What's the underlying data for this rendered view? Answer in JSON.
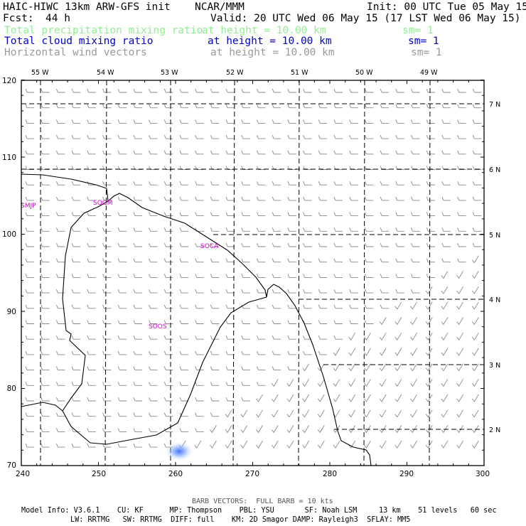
{
  "header": {
    "model_title": "HAIC-HIWC 13km ARW-GFS init",
    "center": "NCAR/MMM",
    "init": "Init: 00 UTC Tue 05 May 15",
    "fcst_label": "Fcst:",
    "fcst_value": "44 h",
    "valid": "Valid: 20 UTC Wed 06 May 15 (17 LST Wed 06 May 15)",
    "fields": [
      {
        "name": "Total precipitation mixing ratio",
        "height": "at height = 10.00 km",
        "smooth": "sm= 1",
        "color": "#90ee90"
      },
      {
        "name": "Total cloud mixing ratio",
        "height": "at height = 10.00 km",
        "smooth": "sm= 1",
        "color": "#0000cd"
      },
      {
        "name": "Horizontal wind vectors",
        "height": "at height = 10.00 km",
        "smooth": "sm= 1",
        "color": "#999999"
      }
    ]
  },
  "map": {
    "x_ticks": [
      "240",
      "250",
      "260",
      "270",
      "280",
      "290",
      "300"
    ],
    "y_ticks": [
      "70",
      "80",
      "90",
      "100",
      "110",
      "120"
    ],
    "lon_labels": [
      "55 W",
      "54 W",
      "53 W",
      "52 W",
      "51 W",
      "50 W",
      "49 W"
    ],
    "lat_labels": [
      "7 N",
      "6 N",
      "5 N",
      "4 N",
      "3 N",
      "2 N"
    ],
    "stations": [
      "SMJP",
      "SOGM",
      "SOCA",
      "SOOS"
    ],
    "colors": {
      "station": "#cc00cc",
      "barb": "#888888",
      "cloud_blob": "#5a8fff",
      "lines": "#000000"
    }
  },
  "footer": {
    "barb_note": "BARB VECTORS:  FULL BARB = 10 kts",
    "line1": "Model Info: V3.6.1    CU: KF      MP: Thompson    PBL: YSU       SF: Noah LSM     13 km    51 levels   60 sec",
    "line2": "LW: RRTMG   SW: RRTMG  DIFF: full    KM: 2D Smagor DAMP: Rayleigh3  SFLAY: MM5"
  }
}
